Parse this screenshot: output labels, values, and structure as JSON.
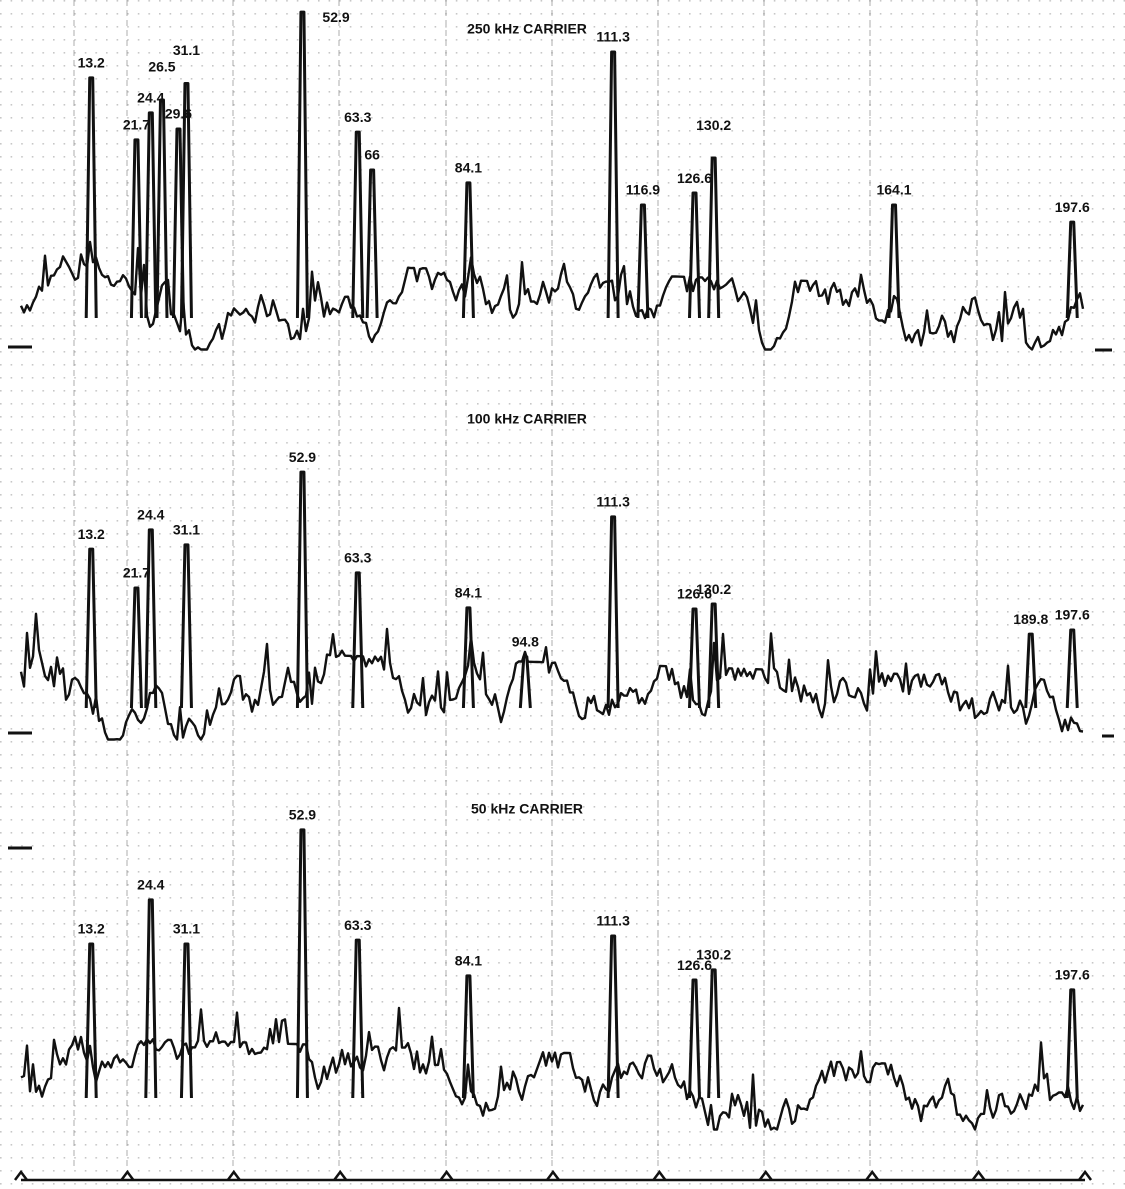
{
  "chart_data": [
    {
      "type": "line",
      "title": "250 kHz CARRIER",
      "color": "#111111",
      "xlim": [
        0,
        200
      ],
      "ylim": [
        0,
        100
      ],
      "x": [
        13.2,
        21.7,
        24.4,
        26.5,
        29.6,
        31.1,
        52.9,
        63.3,
        66,
        84.1,
        111.3,
        116.9,
        126.6,
        130.2,
        164.1,
        197.6
      ],
      "values": [
        80.6,
        62.9,
        70.6,
        74.3,
        66,
        79,
        99.4,
        65.1,
        54.3,
        50.6,
        88,
        44.3,
        47.7,
        57.7,
        44.3,
        39.4
      ]
    },
    {
      "type": "line",
      "title": "100 kHz CARRIER",
      "color": "#111111",
      "xlim": [
        0,
        200
      ],
      "ylim": [
        0,
        100
      ],
      "x": [
        13.2,
        21.7,
        24.4,
        31.1,
        52.9,
        63.3,
        84.1,
        94.8,
        111.3,
        126.6,
        130.2,
        189.8,
        197.6
      ],
      "values": [
        57.4,
        46.3,
        62.9,
        58.6,
        79.4,
        50.6,
        40.6,
        26.6,
        66.6,
        40.3,
        41.7,
        33.1,
        34.3
      ]
    },
    {
      "type": "line",
      "title": "50 kHz CARRIER",
      "color": "#111111",
      "xlim": [
        0,
        200
      ],
      "ylim": [
        0,
        100
      ],
      "x": [
        13.2,
        24.4,
        31.1,
        52.9,
        63.3,
        84.1,
        111.3,
        126.6,
        130.2,
        197.6
      ],
      "values": [
        56,
        68.6,
        56,
        88.6,
        57.1,
        46.9,
        58.3,
        45.7,
        48.6,
        42.9
      ],
      "xticks": [
        0,
        20,
        40,
        60,
        80,
        100,
        120,
        140,
        160,
        180,
        200
      ]
    }
  ]
}
